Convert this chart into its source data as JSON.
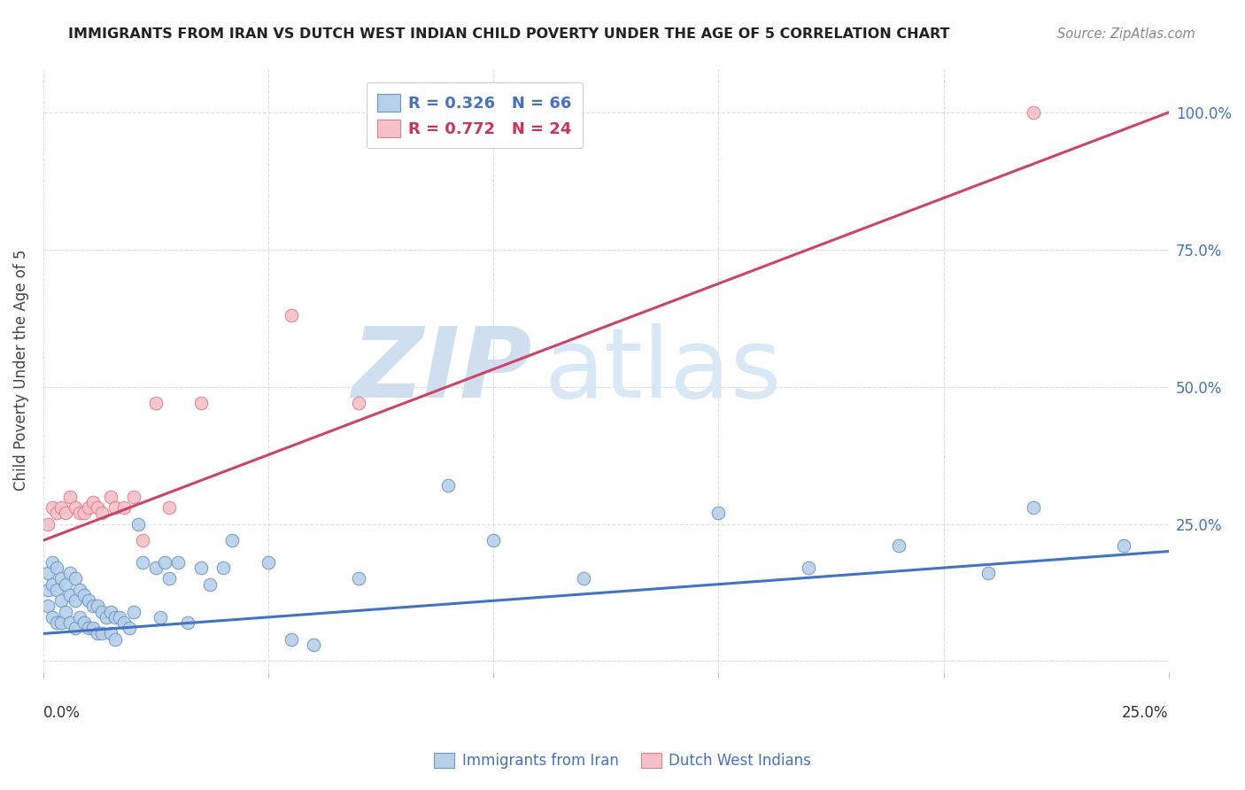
{
  "title": "IMMIGRANTS FROM IRAN VS DUTCH WEST INDIAN CHILD POVERTY UNDER THE AGE OF 5 CORRELATION CHART",
  "source": "Source: ZipAtlas.com",
  "ylabel": "Child Poverty Under the Age of 5",
  "ytick_values": [
    0.0,
    0.25,
    0.5,
    0.75,
    1.0
  ],
  "ytick_labels": [
    "",
    "25.0%",
    "50.0%",
    "75.0%",
    "100.0%"
  ],
  "xlim": [
    0.0,
    0.25
  ],
  "ylim": [
    -0.02,
    1.08
  ],
  "legend1_label": "R = 0.326   N = 66",
  "legend2_label": "R = 0.772   N = 24",
  "blue_color_face": "#b8cfe8",
  "blue_color_edge": "#6699cc",
  "pink_color_face": "#f5c0c8",
  "pink_color_edge": "#e08090",
  "line_blue": "#4472c4",
  "line_pink": "#cc4466",
  "watermark_zip_color": "#d0dff0",
  "watermark_atlas_color": "#d8e8f5",
  "blue_scatter_x": [
    0.001,
    0.001,
    0.001,
    0.002,
    0.002,
    0.002,
    0.003,
    0.003,
    0.003,
    0.004,
    0.004,
    0.004,
    0.005,
    0.005,
    0.006,
    0.006,
    0.006,
    0.007,
    0.007,
    0.007,
    0.008,
    0.008,
    0.009,
    0.009,
    0.01,
    0.01,
    0.011,
    0.011,
    0.012,
    0.012,
    0.013,
    0.013,
    0.014,
    0.015,
    0.015,
    0.016,
    0.016,
    0.017,
    0.018,
    0.019,
    0.02,
    0.021,
    0.022,
    0.025,
    0.026,
    0.027,
    0.028,
    0.03,
    0.032,
    0.035,
    0.037,
    0.04,
    0.042,
    0.05,
    0.055,
    0.06,
    0.07,
    0.09,
    0.1,
    0.12,
    0.15,
    0.17,
    0.19,
    0.21,
    0.22,
    0.24
  ],
  "blue_scatter_y": [
    0.16,
    0.13,
    0.1,
    0.18,
    0.14,
    0.08,
    0.17,
    0.13,
    0.07,
    0.15,
    0.11,
    0.07,
    0.14,
    0.09,
    0.16,
    0.12,
    0.07,
    0.15,
    0.11,
    0.06,
    0.13,
    0.08,
    0.12,
    0.07,
    0.11,
    0.06,
    0.1,
    0.06,
    0.1,
    0.05,
    0.09,
    0.05,
    0.08,
    0.09,
    0.05,
    0.08,
    0.04,
    0.08,
    0.07,
    0.06,
    0.09,
    0.25,
    0.18,
    0.17,
    0.08,
    0.18,
    0.15,
    0.18,
    0.07,
    0.17,
    0.14,
    0.17,
    0.22,
    0.18,
    0.04,
    0.03,
    0.15,
    0.32,
    0.22,
    0.15,
    0.27,
    0.17,
    0.21,
    0.16,
    0.28,
    0.21
  ],
  "pink_scatter_x": [
    0.001,
    0.002,
    0.003,
    0.004,
    0.005,
    0.006,
    0.007,
    0.008,
    0.009,
    0.01,
    0.011,
    0.012,
    0.013,
    0.015,
    0.016,
    0.018,
    0.02,
    0.022,
    0.025,
    0.028,
    0.035,
    0.055,
    0.07,
    0.22
  ],
  "pink_scatter_y": [
    0.25,
    0.28,
    0.27,
    0.28,
    0.27,
    0.3,
    0.28,
    0.27,
    0.27,
    0.28,
    0.29,
    0.28,
    0.27,
    0.3,
    0.28,
    0.28,
    0.3,
    0.22,
    0.47,
    0.28,
    0.47,
    0.63,
    0.47,
    1.0
  ],
  "blue_line_x": [
    0.0,
    0.25
  ],
  "blue_line_y": [
    0.05,
    0.2
  ],
  "pink_line_x": [
    0.0,
    0.25
  ],
  "pink_line_y": [
    0.22,
    1.0
  ],
  "grid_color": "#dddddd",
  "bg_color": "#ffffff",
  "title_color": "#222222",
  "source_color": "#888888",
  "ylabel_color": "#444444",
  "right_tick_color": "#4472c4"
}
